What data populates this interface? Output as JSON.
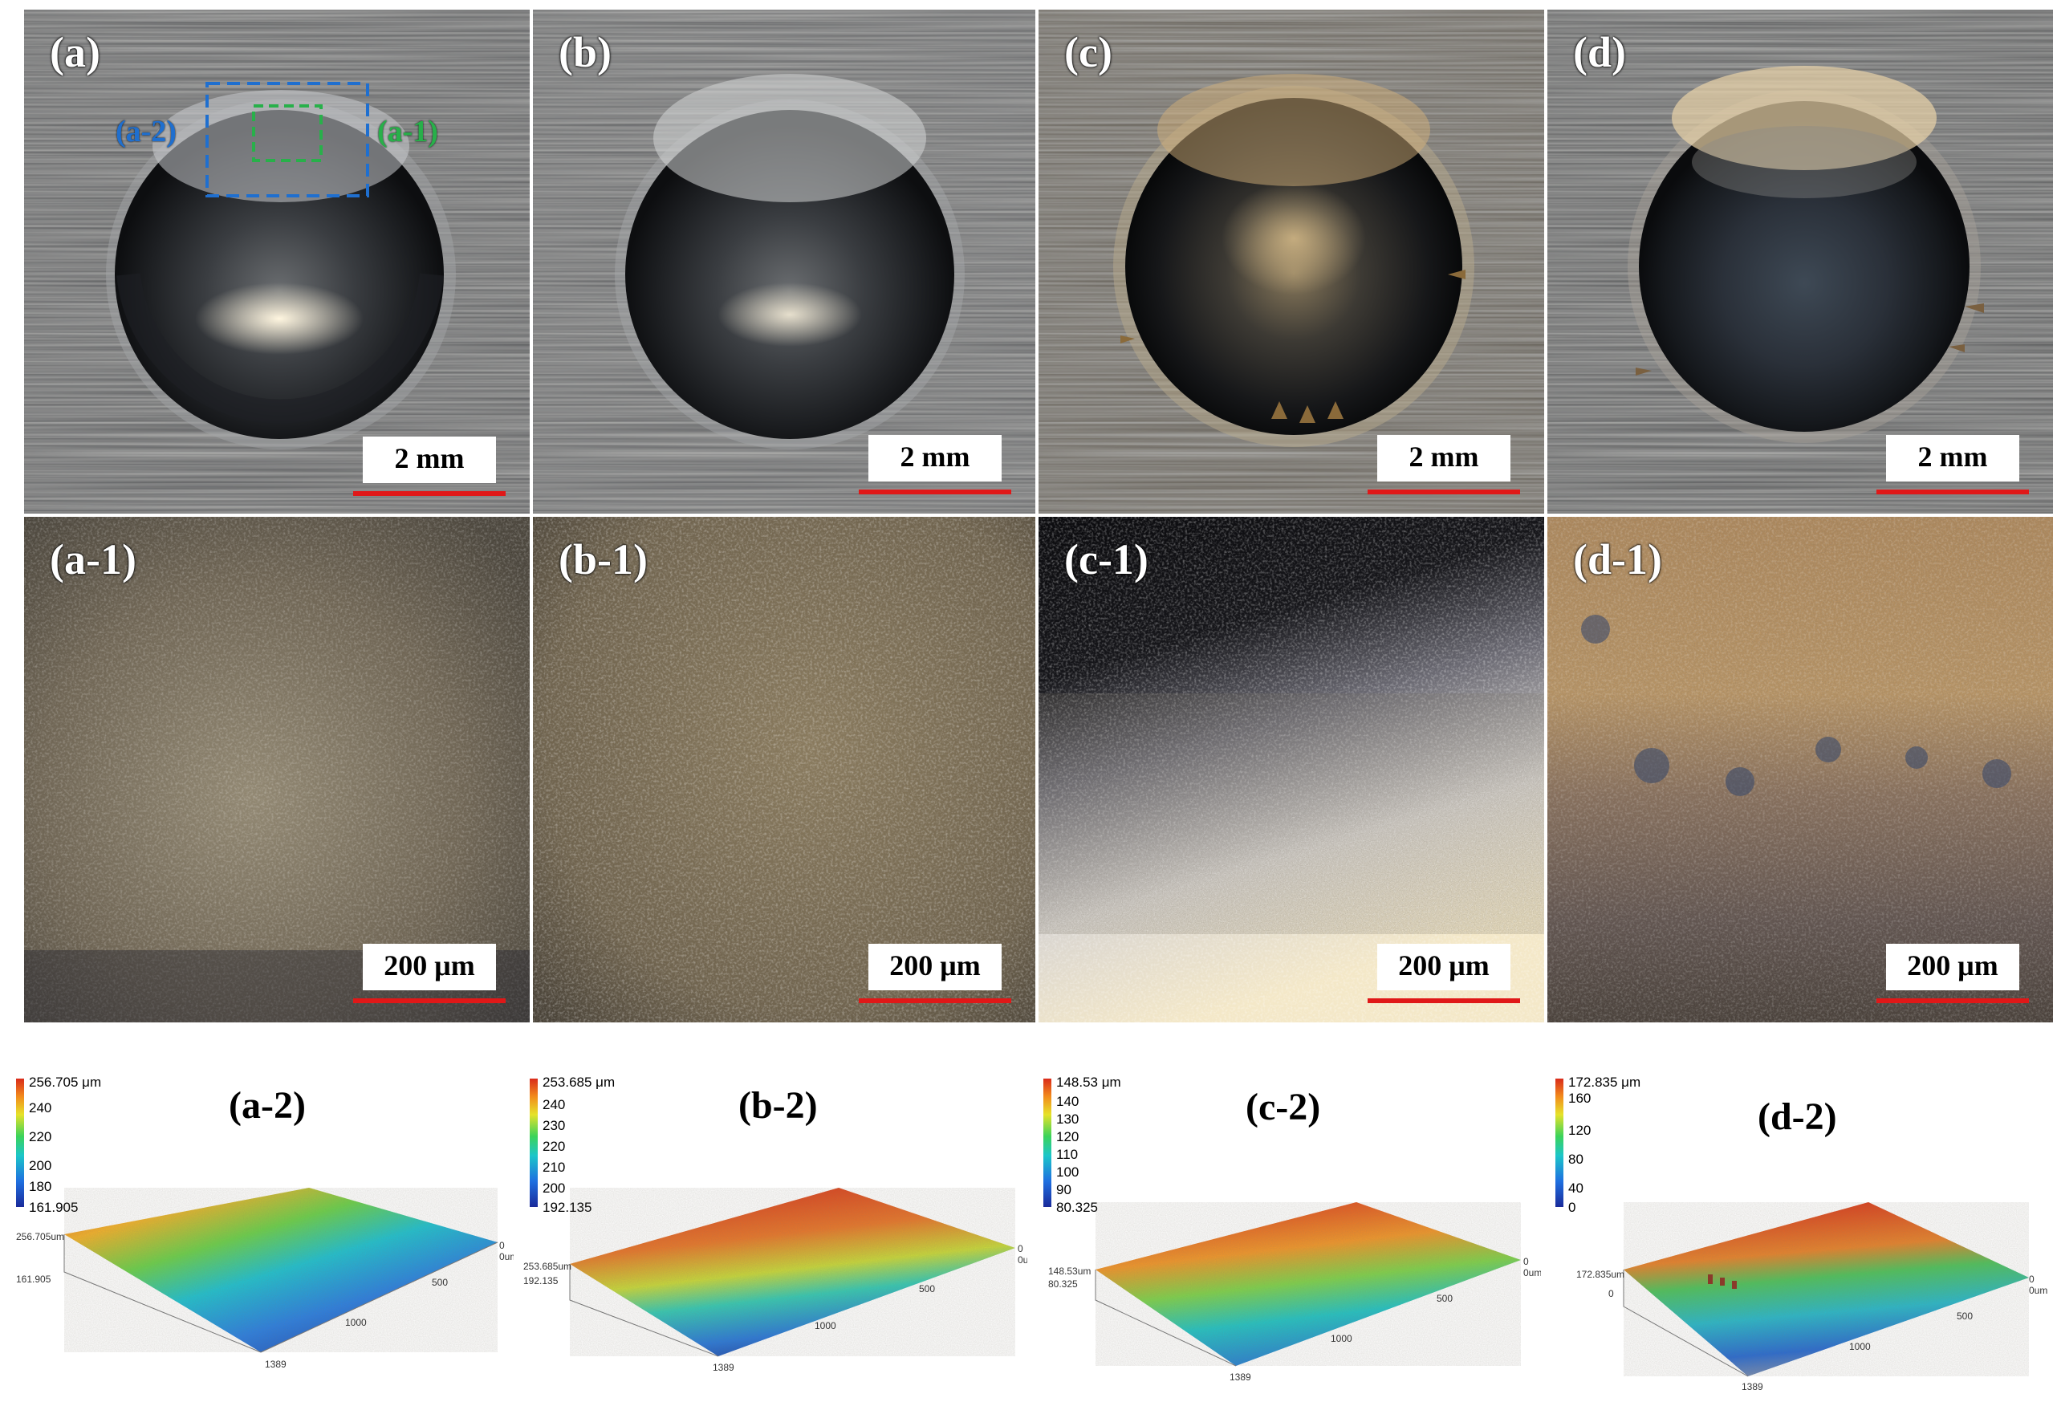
{
  "top_row": [
    {
      "label": "(a)",
      "scale": "2 mm"
    },
    {
      "label": "(b)",
      "scale": "2 mm"
    },
    {
      "label": "(c)",
      "scale": "2 mm"
    },
    {
      "label": "(d)",
      "scale": "2 mm"
    }
  ],
  "roi_labels": {
    "a2": "(a-2)",
    "a1": "(a-1)",
    "a2_color": "#1f6fcf",
    "a1_color": "#28b04a"
  },
  "mid_row": [
    {
      "label": "(a-1)",
      "scale": "200 μm"
    },
    {
      "label": "(b-1)",
      "scale": "200 μm"
    },
    {
      "label": "(c-1)",
      "scale": "200 μm"
    },
    {
      "label": "(d-1)",
      "scale": "200 μm"
    }
  ],
  "topo": [
    {
      "title": "(a-2)",
      "max": "256.705 μm",
      "ticks": [
        "240",
        "220",
        "200",
        "180"
      ],
      "min": "161.905",
      "axis_max": "256.705um",
      "axis_min": "161.905",
      "x_ticks": [
        "0",
        "500",
        "1000",
        "1389"
      ],
      "y_tick": "0um"
    },
    {
      "title": "(b-2)",
      "max": "253.685 μm",
      "ticks": [
        "240",
        "230",
        "220",
        "210",
        "200"
      ],
      "min": "192.135",
      "axis_max": "253.685um",
      "axis_min": "192.135",
      "x_ticks": [
        "0",
        "500",
        "1000",
        "1389"
      ],
      "y_tick": "0um"
    },
    {
      "title": "(c-2)",
      "max": "148.53 μm",
      "ticks": [
        "140",
        "130",
        "120",
        "110",
        "100",
        "90"
      ],
      "min": "80.325",
      "axis_max": "148.53um",
      "axis_min": "80.325",
      "x_ticks": [
        "0",
        "500",
        "1000",
        "1389"
      ],
      "y_tick": "0um"
    },
    {
      "title": "(d-2)",
      "max": "172.835 μm",
      "ticks": [
        "160",
        "120",
        "80",
        "40",
        "0"
      ],
      "min": "",
      "axis_max": "172.835um",
      "axis_min": "0",
      "x_ticks": [
        "0",
        "500",
        "1000",
        "1389"
      ],
      "y_tick": "0um"
    }
  ],
  "colors": {
    "scale_bar": "#e01818",
    "background": "#ffffff"
  }
}
